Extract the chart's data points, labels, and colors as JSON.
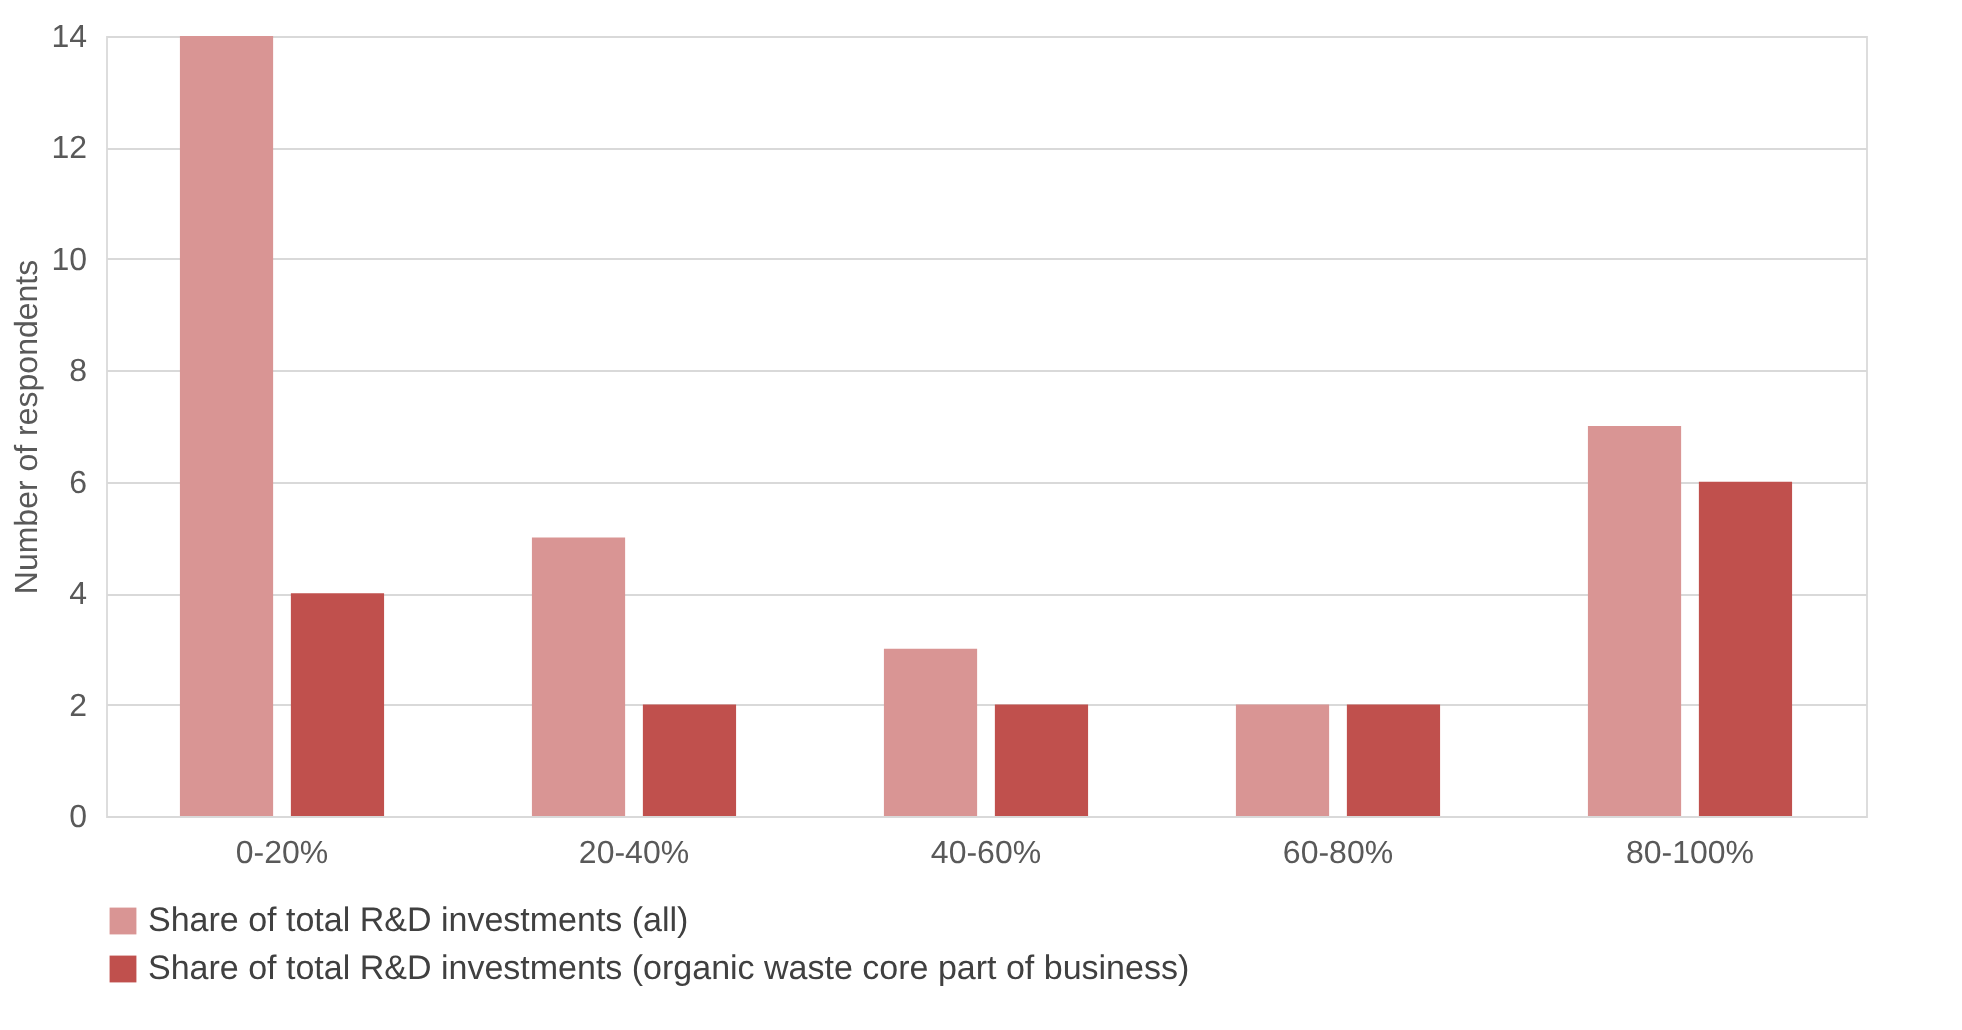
{
  "chart_data": {
    "type": "bar",
    "ylabel": "Number of respondents",
    "categories": [
      "0-20%",
      "20-40%",
      "40-60%",
      "60-80%",
      "80-100%"
    ],
    "series": [
      {
        "name": "Share of total R&D investments (all)",
        "color": "#d99594",
        "values": [
          14,
          5,
          3,
          2,
          7
        ]
      },
      {
        "name": "Share of total R&D investments (organic waste core part of business)",
        "color": "#c0504d",
        "values": [
          4,
          2,
          2,
          2,
          6
        ]
      }
    ],
    "ylim": [
      0,
      14
    ],
    "yticks": [
      0,
      2,
      4,
      6,
      8,
      10,
      12,
      14
    ],
    "grid": "y",
    "legend": "bottom"
  }
}
